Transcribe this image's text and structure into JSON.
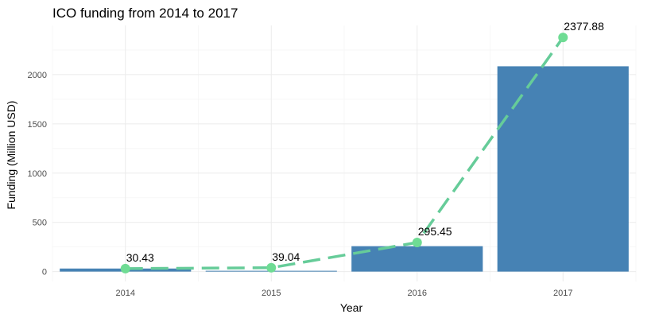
{
  "chart_data": {
    "type": "bar",
    "title": "ICO funding from 2014 to 2017",
    "xlabel": "Year",
    "ylabel": "Funding (Million USD)",
    "categories": [
      "2014",
      "2015",
      "2016",
      "2017"
    ],
    "series": [
      {
        "type": "bar",
        "values": [
          31,
          8,
          258,
          2085
        ],
        "color": "#4682b4"
      },
      {
        "type": "line",
        "style": "dashed",
        "values": [
          30.43,
          39.04,
          295.45,
          2377.88
        ],
        "labels": [
          "30.43",
          "39.04",
          "295.45",
          "2377.88"
        ],
        "color": "#66cc99"
      }
    ],
    "ylim": [
      -100,
      2500
    ],
    "yticks": [
      0,
      500,
      1000,
      1500,
      2000
    ],
    "ytick_labels": [
      "0",
      "500",
      "1000",
      "1500",
      "2000"
    ],
    "grid": true,
    "legend": "none"
  }
}
